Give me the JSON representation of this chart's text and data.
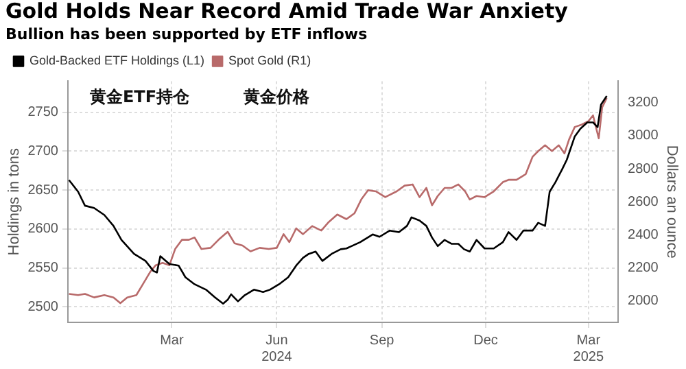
{
  "chart_data": {
    "type": "line",
    "title": "Gold Holds Near Record Amid Trade War Anxiety",
    "subtitle": "Bullion has been supported by ETF inflows",
    "ylabel": "Holdings in tons",
    "y2label": "Dollars an ounce",
    "legend": "top left",
    "grid": true,
    "marker": "none",
    "line_style": "solid",
    "annotations": [
      "黄金ETF持仓",
      "黄金价格"
    ],
    "xlim": [
      "2023-12-01",
      "2025-03-27"
    ],
    "xticks": [
      {
        "value": "2024-03-01",
        "label": "Mar"
      },
      {
        "value": "2024-06-01",
        "label": "Jun\n2024"
      },
      {
        "value": "2024-09-01",
        "label": "Sep"
      },
      {
        "value": "2024-12-01",
        "label": "Dec"
      },
      {
        "value": "2025-03-01",
        "label": "Mar\n2025"
      }
    ],
    "ylim": [
      2480,
      2790
    ],
    "yticks": [
      2500,
      2550,
      2600,
      2650,
      2700,
      2750
    ],
    "y2lim": [
      1870,
      3330
    ],
    "y2ticks": [
      2000,
      2200,
      2400,
      2600,
      2800,
      3000,
      3200
    ],
    "series": [
      {
        "name": "Gold-Backed ETF Holdings (L1)",
        "color": "#000000",
        "x": [
          "2023-12-02",
          "2023-12-10",
          "2023-12-16",
          "2023-12-24",
          "2024-01-02",
          "2024-01-10",
          "2024-01-17",
          "2024-01-28",
          "2024-02-07",
          "2024-02-14",
          "2024-02-17",
          "2024-02-20",
          "2024-02-28",
          "2024-03-07",
          "2024-03-13",
          "2024-03-21",
          "2024-03-31",
          "2024-04-08",
          "2024-04-15",
          "2024-04-19",
          "2024-04-22",
          "2024-04-28",
          "2024-05-04",
          "2024-05-12",
          "2024-05-20",
          "2024-05-26",
          "2024-06-03",
          "2024-06-11",
          "2024-06-18",
          "2024-06-24",
          "2024-06-29",
          "2024-07-05",
          "2024-07-11",
          "2024-07-19",
          "2024-07-27",
          "2024-08-01",
          "2024-08-13",
          "2024-08-24",
          "2024-08-30",
          "2024-09-08",
          "2024-09-16",
          "2024-09-23",
          "2024-09-27",
          "2024-10-04",
          "2024-10-10",
          "2024-10-15",
          "2024-10-20",
          "2024-10-26",
          "2024-11-01",
          "2024-11-07",
          "2024-11-12",
          "2024-11-17",
          "2024-11-23",
          "2024-11-30",
          "2024-12-08",
          "2024-12-16",
          "2024-12-21",
          "2024-12-28",
          "2025-01-03",
          "2025-01-11",
          "2025-01-16",
          "2025-01-22",
          "2025-01-26",
          "2025-01-31",
          "2025-02-06",
          "2025-02-10",
          "2025-02-17",
          "2025-02-22",
          "2025-02-28",
          "2025-03-05",
          "2025-03-09",
          "2025-03-12",
          "2025-03-17"
        ],
        "values": [
          2663,
          2648,
          2630,
          2627,
          2618,
          2604,
          2586,
          2568,
          2559,
          2546,
          2544,
          2565,
          2555,
          2553,
          2538,
          2529,
          2522,
          2512,
          2504,
          2509,
          2516,
          2507,
          2515,
          2522,
          2519,
          2522,
          2529,
          2538,
          2553,
          2563,
          2568,
          2571,
          2559,
          2568,
          2574,
          2575,
          2583,
          2593,
          2590,
          2598,
          2596,
          2604,
          2615,
          2611,
          2604,
          2589,
          2578,
          2586,
          2581,
          2581,
          2574,
          2571,
          2586,
          2575,
          2575,
          2583,
          2596,
          2586,
          2598,
          2598,
          2608,
          2604,
          2648,
          2660,
          2677,
          2689,
          2719,
          2729,
          2737,
          2737,
          2731,
          2760,
          2771
        ]
      },
      {
        "name": "Spot Gold (R1)",
        "color": "#b86a6a",
        "axis": "y2",
        "x": [
          "2023-12-02",
          "2023-12-10",
          "2023-12-16",
          "2023-12-24",
          "2024-01-02",
          "2024-01-10",
          "2024-01-16",
          "2024-01-22",
          "2024-01-30",
          "2024-02-05",
          "2024-02-11",
          "2024-02-16",
          "2024-02-22",
          "2024-02-28",
          "2024-03-04",
          "2024-03-10",
          "2024-03-16",
          "2024-03-21",
          "2024-03-27",
          "2024-04-04",
          "2024-04-11",
          "2024-04-19",
          "2024-04-25",
          "2024-05-02",
          "2024-05-09",
          "2024-05-17",
          "2024-05-25",
          "2024-06-01",
          "2024-06-07",
          "2024-06-12",
          "2024-06-18",
          "2024-06-24",
          "2024-07-02",
          "2024-07-10",
          "2024-07-16",
          "2024-07-24",
          "2024-08-01",
          "2024-08-08",
          "2024-08-14",
          "2024-08-20",
          "2024-08-27",
          "2024-09-04",
          "2024-09-14",
          "2024-09-21",
          "2024-09-28",
          "2024-10-04",
          "2024-10-10",
          "2024-10-15",
          "2024-10-20",
          "2024-10-26",
          "2024-11-01",
          "2024-11-07",
          "2024-11-13",
          "2024-11-17",
          "2024-11-23",
          "2024-11-30",
          "2024-12-08",
          "2024-12-16",
          "2024-12-21",
          "2024-12-28",
          "2025-01-05",
          "2025-01-11",
          "2025-01-16",
          "2025-01-22",
          "2025-01-28",
          "2025-02-03",
          "2025-02-08",
          "2025-02-12",
          "2025-02-17",
          "2025-02-23",
          "2025-03-01",
          "2025-03-05",
          "2025-03-10",
          "2025-03-13",
          "2025-03-17"
        ],
        "values": [
          2042,
          2035,
          2042,
          2021,
          2035,
          2021,
          1986,
          2021,
          2035,
          2104,
          2174,
          2216,
          2230,
          2216,
          2314,
          2370,
          2370,
          2384,
          2314,
          2321,
          2370,
          2418,
          2349,
          2335,
          2300,
          2321,
          2314,
          2321,
          2404,
          2356,
          2439,
          2404,
          2453,
          2426,
          2474,
          2523,
          2495,
          2530,
          2614,
          2670,
          2663,
          2628,
          2663,
          2698,
          2705,
          2628,
          2684,
          2579,
          2635,
          2684,
          2684,
          2705,
          2663,
          2614,
          2635,
          2628,
          2663,
          2719,
          2733,
          2733,
          2767,
          2872,
          2907,
          2942,
          2907,
          2942,
          2893,
          2977,
          3053,
          3067,
          3088,
          3123,
          2984,
          3172,
          3228
        ]
      }
    ]
  }
}
